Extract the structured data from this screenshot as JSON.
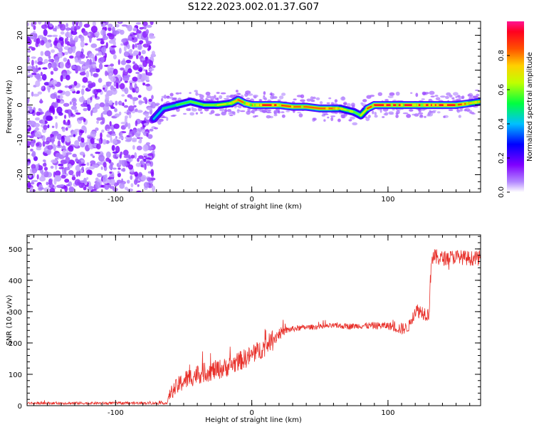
{
  "figure": {
    "title": "S122.2023.002.01.37.G07"
  },
  "chart_data": [
    {
      "type": "heatmap",
      "xlabel": "Height of straight line (km)",
      "ylabel": "Frequency (Hz)",
      "xlim": [
        -165,
        168
      ],
      "ylim": [
        -25,
        24
      ],
      "x_ticks": [
        -100,
        0,
        100
      ],
      "y_ticks": [
        -20,
        -10,
        0,
        10,
        20
      ],
      "colorbar": {
        "label": "Normalized spectral amplitude",
        "range": [
          0.0,
          1.0
        ],
        "ticks": [
          0.0,
          0.2,
          0.4,
          0.6,
          0.8
        ],
        "colors": [
          "#ffffff",
          "#8a2be2",
          "#0000ff",
          "#00ffff",
          "#00ff00",
          "#ffff00",
          "#ff8000",
          "#ff0000",
          "#ff1493"
        ]
      },
      "noise_region_x": [
        -165,
        -72
      ],
      "ridge": {
        "x": [
          -72,
          -65,
          -55,
          -45,
          -35,
          -25,
          -15,
          -10,
          -5,
          0,
          10,
          20,
          30,
          40,
          50,
          60,
          65,
          70,
          75,
          80,
          85,
          90,
          100,
          110,
          120,
          130,
          140,
          150,
          160,
          168
        ],
        "freq": [
          -4,
          -1,
          0,
          1,
          0,
          0,
          0.5,
          1.5,
          0.5,
          0,
          0,
          0,
          -0.5,
          -0.5,
          -1,
          -1,
          -1,
          -1.5,
          -2,
          -3,
          -1,
          0,
          0,
          0,
          0,
          0,
          0,
          0,
          0.5,
          1
        ],
        "amplitude": [
          0.4,
          0.45,
          0.5,
          0.6,
          0.55,
          0.65,
          0.7,
          0.8,
          0.85,
          0.9,
          0.95,
          0.9,
          0.8,
          0.85,
          0.8,
          0.85,
          0.7,
          0.6,
          0.6,
          0.55,
          0.8,
          0.9,
          0.95,
          0.95,
          0.95,
          0.95,
          0.95,
          0.9,
          0.8,
          0.7
        ]
      }
    },
    {
      "type": "line",
      "xlabel": "Height of straight line (km)",
      "ylabel": "SNR (10 * v/v)",
      "xlim": [
        -165,
        168
      ],
      "ylim": [
        0,
        545
      ],
      "x_ticks": [
        -100,
        0,
        100
      ],
      "y_ticks": [
        0,
        100,
        200,
        300,
        400,
        500
      ],
      "series": [
        {
          "color": "#e8302a",
          "x": [
            -165,
            -140,
            -120,
            -100,
            -80,
            -62,
            -60,
            -55,
            -50,
            -40,
            -30,
            -20,
            -10,
            0,
            10,
            15,
            20,
            25,
            30,
            40,
            50,
            60,
            70,
            80,
            90,
            100,
            105,
            110,
            115,
            120,
            125,
            130,
            132,
            140,
            150,
            160,
            168
          ],
          "mean": [
            8,
            8,
            8,
            8,
            8,
            8,
            40,
            60,
            80,
            100,
            110,
            120,
            140,
            160,
            190,
            210,
            230,
            240,
            245,
            250,
            252,
            255,
            253,
            255,
            255,
            255,
            250,
            245,
            250,
            305,
            300,
            290,
            475,
            470,
            475,
            470,
            470
          ],
          "spread": [
            5,
            5,
            5,
            5,
            5,
            5,
            25,
            35,
            40,
            40,
            40,
            40,
            40,
            40,
            40,
            35,
            25,
            15,
            12,
            10,
            10,
            10,
            12,
            12,
            15,
            15,
            20,
            25,
            20,
            30,
            30,
            30,
            35,
            30,
            30,
            30,
            30
          ]
        }
      ]
    }
  ]
}
